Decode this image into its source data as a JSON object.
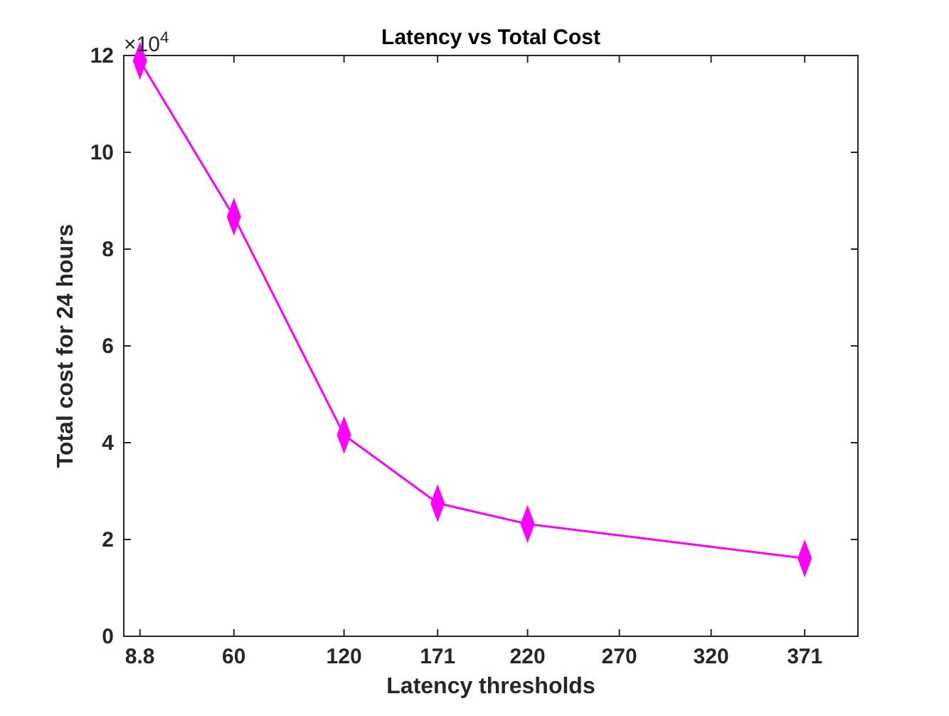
{
  "chart_data": {
    "type": "line",
    "title": "Latency vs Total Cost",
    "xlabel": "Latency thresholds",
    "ylabel": "Total cost for 24 hours",
    "x": [
      8.8,
      60,
      120,
      171,
      220,
      371
    ],
    "series": [
      {
        "color": "#ff00ff",
        "values": [
          11.89,
          8.67,
          4.16,
          2.75,
          2.32,
          1.61
        ]
      }
    ],
    "xlim": [
      0,
      400
    ],
    "xticks": [
      8.8,
      60,
      120,
      171,
      220,
      270,
      320,
      371
    ],
    "ylim": [
      0,
      12
    ],
    "yticks": [
      0,
      2,
      4,
      6,
      8,
      10,
      12
    ],
    "annotations": [
      "×10$^{4}$"
    ],
    "marker": "diamond",
    "line_style": "solid"
  }
}
